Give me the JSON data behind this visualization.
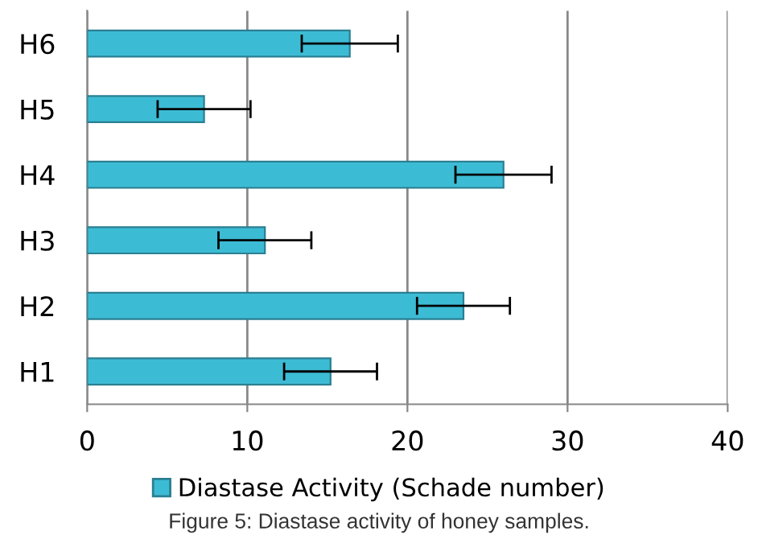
{
  "chart_data": {
    "type": "bar",
    "orientation": "horizontal",
    "categories": [
      "H6",
      "H5",
      "H4",
      "H3",
      "H2",
      "H1"
    ],
    "series": [
      {
        "name": "Diastase Activity (Schade number)",
        "color": "#3cbcd4",
        "values": [
          16.4,
          7.3,
          26.0,
          11.1,
          23.5,
          15.2
        ],
        "errors": [
          3.0,
          2.9,
          3.0,
          2.9,
          2.9,
          2.9
        ]
      }
    ],
    "xlim": [
      0,
      40
    ],
    "xticks": [
      0,
      10,
      20,
      30,
      40
    ],
    "grid": "x",
    "legend": "bottom",
    "annotations": [
      "Figure 5: Diastase activity of honey samples."
    ]
  }
}
